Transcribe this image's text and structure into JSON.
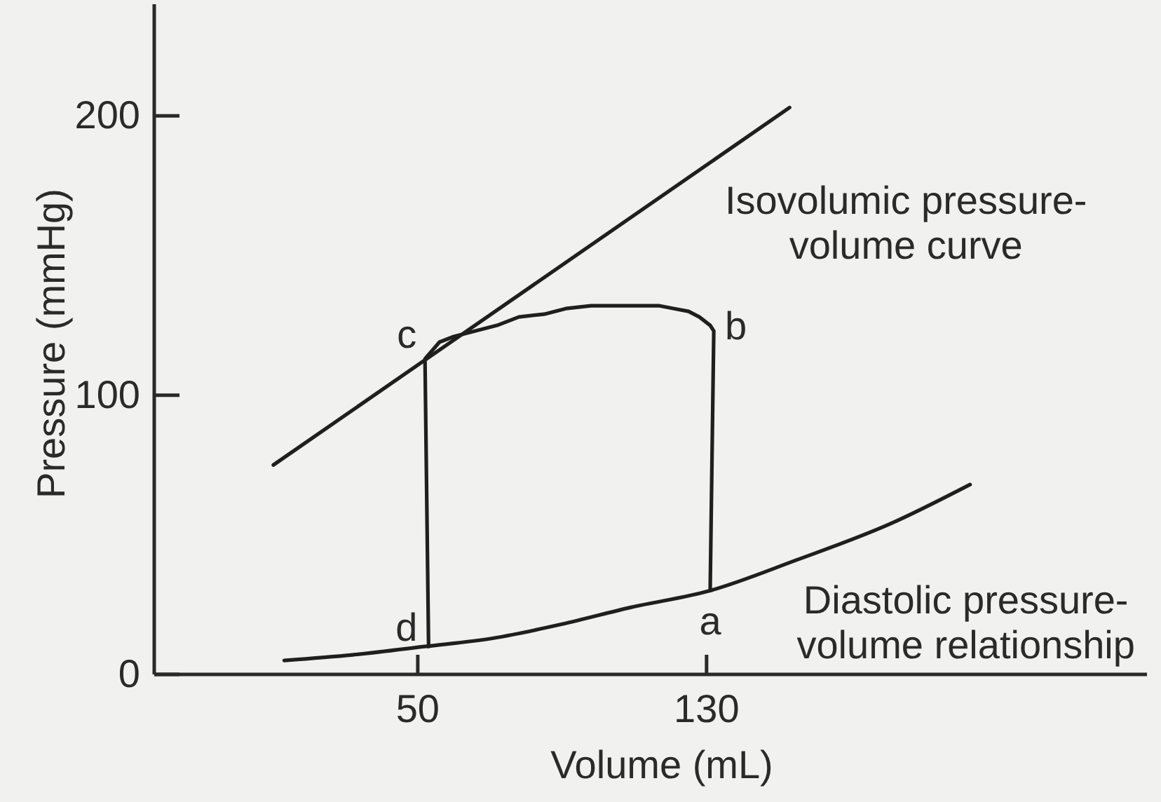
{
  "chart_data": {
    "type": "line",
    "xlabel": "Volume (mL)",
    "ylabel": "Pressure (mmHg)",
    "xlim": [
      -23,
      252
    ],
    "ylim": [
      0,
      240
    ],
    "xticks": [
      50,
      130
    ],
    "yticks": [
      0,
      100,
      200
    ],
    "marker": "none",
    "series": [
      {
        "name": "Isovolumic pressure-volume curve",
        "color": "#1f1f1f",
        "x": [
          10,
          153
        ],
        "values": [
          75,
          203
        ]
      },
      {
        "color": "#1f1f1f",
        "x": [
          53,
          52,
          54,
          56,
          60,
          66,
          72,
          78,
          85,
          91,
          98,
          104,
          111,
          117,
          121,
          125,
          128,
          130,
          131,
          132,
          131
        ],
        "values": [
          10,
          113,
          116,
          119,
          121,
          123,
          125,
          128,
          129,
          131,
          132,
          132,
          132,
          132,
          131,
          130,
          128,
          126,
          125,
          123,
          30
        ]
      },
      {
        "name": "Diastolic pressure-volume relationship",
        "color": "#1f1f1f",
        "x": [
          13,
          32,
          52,
          71,
          90,
          109,
          131,
          155,
          181,
          203
        ],
        "values": [
          5,
          7,
          10,
          13,
          18,
          24,
          30,
          41,
          54,
          68
        ]
      }
    ],
    "annotations": [
      {
        "text": "a",
        "x": 131,
        "y": 30
      },
      {
        "text": "b",
        "x": 132,
        "y": 123
      },
      {
        "text": "c",
        "x": 52,
        "y": 113
      },
      {
        "text": "d",
        "x": 53,
        "y": 10
      }
    ]
  }
}
